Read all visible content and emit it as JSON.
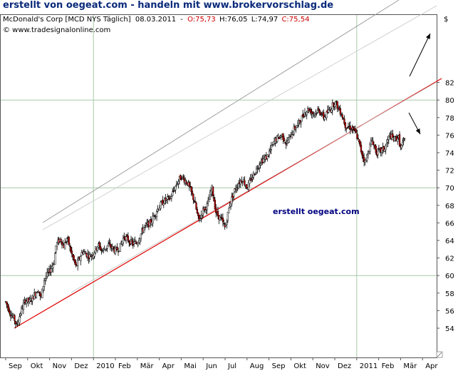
{
  "header": {
    "title": "erstellt von oegeat.com - handeln mit www.brokervorschlag.de"
  },
  "info_line": {
    "symbol": "McDonald's Corp [MCD NYS  Täglich]",
    "date": "08.03.2011",
    "open": "O:75,73",
    "high": "H:76,05",
    "low": "L:74,97",
    "close": "C:75,54"
  },
  "copyright": "© www.tradesignalonline.com",
  "currency_symbol": "$",
  "watermark": "erstellt oegeat.com",
  "colors": {
    "header": "#0a2a7a",
    "info_red": "#cc0000",
    "down_candle": "#cc0000",
    "trend_support": "#dd0000",
    "channel": "#9a9a9a",
    "grid": "#a8c8a8",
    "watermark": "#000080"
  },
  "chart_data": {
    "type": "candlestick",
    "title": "McDonald's Corp [MCD NYS Täglich]",
    "x_tick_labels": [
      "Sep",
      "Okt",
      "Nov",
      "Dez",
      "2010",
      "Feb",
      "Mär",
      "Apr",
      "Mai",
      "Jun",
      "Jul",
      "Aug",
      "Sep",
      "Okt",
      "Nov",
      "Dez",
      "2011",
      "Feb",
      "Mär",
      "Apr"
    ],
    "y_tick_labels": [
      "54",
      "56",
      "58",
      "60",
      "62",
      "64",
      "66",
      "68",
      "70",
      "72",
      "74",
      "76",
      "78",
      "80",
      "82"
    ],
    "ylim": [
      52.5,
      84
    ],
    "x_range_months": [
      0,
      19.7
    ],
    "grid": "horizontal every 10, vertical at 2010 and 2011",
    "price_path": [
      [
        0.0,
        57.0
      ],
      [
        0.25,
        55.5
      ],
      [
        0.4,
        55.0
      ],
      [
        0.5,
        54.2
      ],
      [
        0.7,
        56.0
      ],
      [
        0.9,
        57.2
      ],
      [
        1.1,
        57.0
      ],
      [
        1.3,
        57.8
      ],
      [
        1.5,
        58.5
      ],
      [
        1.6,
        57.2
      ],
      [
        1.75,
        59.5
      ],
      [
        2.0,
        60.5
      ],
      [
        2.2,
        61.5
      ],
      [
        2.3,
        63.5
      ],
      [
        2.5,
        64.2
      ],
      [
        2.65,
        63.3
      ],
      [
        2.8,
        64.3
      ],
      [
        3.0,
        62.5
      ],
      [
        3.2,
        61.0
      ],
      [
        3.35,
        61.8
      ],
      [
        3.5,
        62.8
      ],
      [
        3.8,
        62.2
      ],
      [
        4.0,
        62.5
      ],
      [
        4.2,
        63.5
      ],
      [
        4.4,
        62.8
      ],
      [
        4.7,
        63.5
      ],
      [
        5.0,
        62.8
      ],
      [
        5.2,
        63.2
      ],
      [
        5.4,
        64.5
      ],
      [
        5.6,
        64.0
      ],
      [
        5.8,
        63.6
      ],
      [
        6.0,
        63.8
      ],
      [
        6.3,
        65.5
      ],
      [
        6.6,
        66.0
      ],
      [
        6.9,
        67.5
      ],
      [
        7.2,
        68.5
      ],
      [
        7.5,
        68.8
      ],
      [
        7.8,
        70.5
      ],
      [
        8.0,
        71.3
      ],
      [
        8.3,
        70.5
      ],
      [
        8.6,
        68.5
      ],
      [
        8.8,
        66.2
      ],
      [
        9.0,
        67.5
      ],
      [
        9.2,
        68.0
      ],
      [
        9.4,
        70.0
      ],
      [
        9.6,
        67.0
      ],
      [
        9.8,
        66.5
      ],
      [
        10.0,
        65.4
      ],
      [
        10.2,
        68.0
      ],
      [
        10.4,
        69.5
      ],
      [
        10.6,
        70.5
      ],
      [
        10.8,
        71.0
      ],
      [
        11.0,
        70.0
      ],
      [
        11.3,
        71.5
      ],
      [
        11.6,
        73.0
      ],
      [
        11.9,
        73.5
      ],
      [
        12.1,
        74.5
      ],
      [
        12.3,
        75.5
      ],
      [
        12.6,
        76.0
      ],
      [
        12.8,
        75.0
      ],
      [
        13.1,
        76.5
      ],
      [
        13.4,
        77.5
      ],
      [
        13.6,
        78.5
      ],
      [
        13.8,
        79.0
      ],
      [
        14.0,
        78.5
      ],
      [
        14.3,
        78.8
      ],
      [
        14.5,
        78.0
      ],
      [
        14.8,
        79.0
      ],
      [
        15.0,
        79.8
      ],
      [
        15.3,
        78.5
      ],
      [
        15.5,
        77.0
      ],
      [
        15.8,
        76.8
      ],
      [
        16.0,
        76.0
      ],
      [
        16.2,
        74.2
      ],
      [
        16.4,
        72.8
      ],
      [
        16.5,
        74.0
      ],
      [
        16.7,
        75.5
      ],
      [
        16.9,
        74.0
      ],
      [
        17.1,
        74.2
      ],
      [
        17.3,
        74.5
      ],
      [
        17.5,
        76.0
      ],
      [
        17.7,
        75.5
      ],
      [
        17.9,
        75.8
      ],
      [
        18.0,
        74.5
      ],
      [
        18.2,
        75.5
      ]
    ]
  }
}
